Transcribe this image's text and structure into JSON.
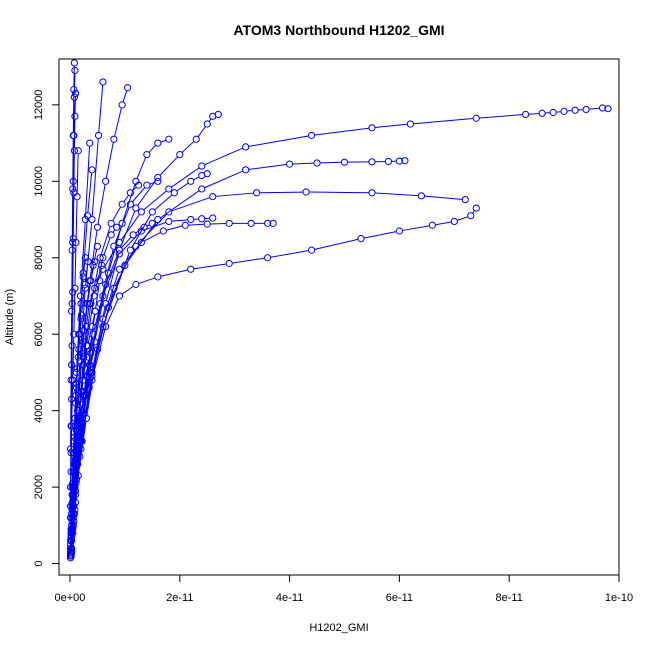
{
  "chart_data": {
    "type": "line",
    "title": "ATOM3 Northbound H1202_GMI",
    "xlabel": "H1202_GMI",
    "ylabel": "Altitude (m)",
    "xlim": [
      -2e-12,
      1e-10
    ],
    "ylim": [
      -300,
      13200
    ],
    "x_ticks": [
      {
        "value": 0,
        "label": "0e+00"
      },
      {
        "value": 2e-11,
        "label": "2e-11"
      },
      {
        "value": 4e-11,
        "label": "4e-11"
      },
      {
        "value": 6e-11,
        "label": "6e-11"
      },
      {
        "value": 8e-11,
        "label": "8e-11"
      },
      {
        "value": 1e-10,
        "label": "1e-10"
      }
    ],
    "y_ticks": [
      {
        "value": 0,
        "label": "0"
      },
      {
        "value": 2000,
        "label": "2000"
      },
      {
        "value": 4000,
        "label": "4000"
      },
      {
        "value": 6000,
        "label": "6000"
      },
      {
        "value": 8000,
        "label": "8000"
      },
      {
        "value": 10000,
        "label": "10000"
      },
      {
        "value": 12000,
        "label": "12000"
      }
    ],
    "marker": "open-circle",
    "color": "#0000ff",
    "grid": false,
    "series": [
      {
        "x": [
          2e-13,
          3e-13,
          5e-13,
          8e-13,
          1.2e-12,
          1.5e-12,
          2e-12,
          2.5e-12,
          3e-12,
          3.5e-12,
          4.5e-12,
          6e-12,
          9e-12,
          1.3e-11,
          1.8e-11,
          2.4e-11,
          3.2e-11,
          4.4e-11,
          5.5e-11,
          6.2e-11,
          7.4e-11,
          8.3e-11,
          8.6e-11,
          8.8e-11,
          9e-11,
          9.2e-11,
          9.4e-11,
          9.7e-11,
          9.8e-11
        ],
        "y": [
          200,
          600,
          1200,
          2000,
          2800,
          3600,
          4500,
          5400,
          6200,
          6800,
          7200,
          7700,
          8400,
          9200,
          9800,
          10400,
          10900,
          11200,
          11400,
          11500,
          11650,
          11750,
          11780,
          11800,
          11830,
          11860,
          11880,
          11920,
          11900
        ]
      },
      {
        "x": [
          2e-13,
          5e-13,
          1e-12,
          2e-12,
          4e-12,
          6.5e-12,
          9e-12,
          1.2e-11,
          1.6e-11,
          2.2e-11,
          2.9e-11,
          3.6e-11,
          4.4e-11,
          5.3e-11,
          6e-11,
          6.6e-11,
          7e-11,
          7.3e-11,
          7.4e-11
        ],
        "y": [
          250,
          900,
          1900,
          3200,
          4800,
          6200,
          7000,
          7300,
          7500,
          7700,
          7850,
          8000,
          8200,
          8500,
          8700,
          8850,
          8950,
          9100,
          9300
        ]
      },
      {
        "x": [
          3e-13,
          7e-13,
          1.5e-12,
          3e-12,
          5e-12,
          8e-12,
          1.2e-11,
          1.8e-11,
          2.6e-11,
          3.4e-11,
          4.3e-11,
          5.5e-11,
          6.4e-11,
          7.2e-11
        ],
        "y": [
          300,
          1100,
          2300,
          3800,
          5600,
          7200,
          8300,
          9200,
          9600,
          9700,
          9720,
          9700,
          9620,
          9520
        ]
      },
      {
        "x": [
          2e-13,
          6e-13,
          1.4e-12,
          3e-12,
          6e-12,
          1e-11,
          1.6e-11,
          2.4e-11,
          3.2e-11,
          4e-11,
          4.5e-11,
          5e-11,
          5.5e-11,
          5.8e-11,
          6e-11,
          6.1e-11
        ],
        "y": [
          300,
          1200,
          2600,
          4400,
          6200,
          7800,
          9000,
          9800,
          10300,
          10450,
          10480,
          10500,
          10510,
          10520,
          10530,
          10540
        ]
      },
      {
        "x": [
          3e-13,
          1e-12,
          2.2e-12,
          4e-12,
          6.5e-12,
          9e-12,
          1.2e-11,
          1.6e-11,
          2e-11,
          2.3e-11,
          2.5e-11,
          2.6e-11,
          2.7e-11
        ],
        "y": [
          400,
          1600,
          3200,
          5000,
          6800,
          8200,
          9300,
          10100,
          10700,
          11100,
          11500,
          11700,
          11750
        ]
      },
      {
        "x": [
          2e-13,
          8e-13,
          1.8e-12,
          3.5e-12,
          6e-12,
          9e-12,
          1.3e-11,
          1.7e-11,
          2.1e-11,
          2.5e-11,
          2.9e-11,
          3.3e-11,
          3.6e-11,
          3.7e-11
        ],
        "y": [
          300,
          1300,
          2800,
          4600,
          6400,
          7700,
          8400,
          8700,
          8850,
          8880,
          8900,
          8900,
          8900,
          8900
        ]
      },
      {
        "x": [
          2e-13,
          6e-13,
          1.2e-12,
          2.5e-12,
          4.5e-12,
          7e-12,
          9.5e-12,
          1.2e-11,
          1.4e-11,
          1.6e-11,
          1.8e-11
        ],
        "y": [
          250,
          1000,
          2200,
          3900,
          5800,
          7600,
          8900,
          10000,
          10700,
          11000,
          11100
        ]
      },
      {
        "x": [
          3e-13,
          9e-13,
          2e-12,
          4e-12,
          7e-12,
          1.1e-11,
          1.5e-11,
          1.9e-11,
          2.2e-11,
          2.4e-11,
          2.5e-11
        ],
        "y": [
          350,
          1400,
          3000,
          4900,
          6700,
          8200,
          9200,
          9700,
          10000,
          10150,
          10200
        ]
      },
      {
        "x": [
          2e-13,
          5e-13,
          1e-12,
          2e-12,
          3.5e-12,
          5.5e-12,
          8e-12,
          1.1e-11,
          1.4e-11,
          1.6e-11
        ],
        "y": [
          200,
          800,
          1800,
          3200,
          5000,
          6800,
          8300,
          9400,
          9900,
          10000
        ]
      },
      {
        "x": [
          2e-13,
          5e-13,
          1.1e-12,
          2.2e-12,
          3.8e-12,
          6e-12,
          9e-12,
          1.3e-11,
          1.8e-11,
          2.2e-11,
          2.4e-11,
          2.6e-11
        ],
        "y": [
          250,
          950,
          2100,
          3700,
          5500,
          7000,
          8100,
          8700,
          8950,
          9000,
          9020,
          9040
        ]
      },
      {
        "x": [
          2e-13,
          4e-13,
          8e-13,
          1.4e-12,
          2.4e-12,
          3.6e-12,
          5e-12,
          6.5e-12,
          8e-12,
          9.5e-12,
          1.05e-11
        ],
        "y": [
          300,
          1100,
          2400,
          4000,
          5800,
          7400,
          8800,
          10000,
          11100,
          12000,
          12450
        ]
      },
      {
        "x": [
          1e-13,
          3e-13,
          6e-13,
          1.1e-12,
          1.8e-12,
          2.8e-12,
          4e-12,
          5.2e-12,
          6e-12
        ],
        "y": [
          200,
          900,
          2000,
          3500,
          5300,
          7200,
          9000,
          11200,
          12600
        ]
      },
      {
        "x": [
          1e-13,
          3e-13,
          7e-13,
          1.4e-12,
          2.4e-12,
          3.8e-12,
          5.5e-12,
          7.5e-12,
          9.5e-12,
          1.1e-11,
          1.25e-11
        ],
        "y": [
          250,
          900,
          2000,
          3500,
          5200,
          6800,
          8000,
          8900,
          9400,
          9700,
          9900
        ]
      },
      {
        "x": [
          2e-13,
          6e-13,
          1.3e-12,
          2.5e-12,
          4.2e-12,
          6.5e-12,
          9e-12,
          1.15e-11,
          1.35e-11,
          1.5e-11
        ],
        "y": [
          300,
          1300,
          2800,
          4400,
          6000,
          7300,
          8200,
          8600,
          8800,
          8900
        ]
      },
      {
        "x": [
          1e-13,
          3e-13,
          6e-13,
          1.1e-12,
          1.9e-12,
          3e-12,
          4.4e-12,
          6e-12,
          7.5e-12,
          8.5e-12
        ],
        "y": [
          200,
          800,
          1700,
          2900,
          4300,
          5700,
          7000,
          8000,
          8600,
          8800
        ]
      },
      {
        "x": [
          1e-13,
          3e-13,
          7e-13,
          1.3e-12,
          2.2e-12,
          3.4e-12,
          4.6e-12,
          5.4e-12,
          5.8e-12
        ],
        "y": [
          200,
          700,
          1500,
          2700,
          4000,
          5400,
          6600,
          7400,
          7800
        ]
      },
      {
        "x": [
          1e-13,
          2e-13,
          4e-13,
          8e-13,
          1.4e-12,
          2.2e-12,
          3.2e-12,
          4.2e-12,
          5e-12
        ],
        "y": [
          150,
          600,
          1400,
          2600,
          4000,
          5500,
          6800,
          7800,
          8300
        ]
      },
      {
        "x": [
          1e-13,
          2e-13,
          4e-13,
          7e-13,
          1.1e-12,
          1.7e-12,
          2.4e-12,
          3.2e-12,
          4e-12
        ],
        "y": [
          200,
          700,
          1600,
          2900,
          4400,
          6000,
          7600,
          9100,
          10300
        ]
      },
      {
        "x": [
          1e-13,
          2e-13,
          4e-13,
          7e-13,
          1.2e-12,
          1.9e-12,
          2.8e-12,
          3.6e-12
        ],
        "y": [
          200,
          800,
          1800,
          3200,
          5000,
          7000,
          9000,
          11000
        ]
      },
      {
        "x": [
          1e-13,
          3e-13,
          6e-13,
          1e-12,
          1.6e-12,
          2.4e-12,
          3.2e-12,
          4e-12,
          4.6e-12
        ],
        "y": [
          300,
          900,
          1700,
          2700,
          3800,
          4800,
          5700,
          6200,
          6600
        ]
      },
      {
        "x": [
          1e-13,
          3e-13,
          6e-13,
          1e-12,
          1.5e-12,
          2e-12,
          2.6e-12,
          3.2e-12,
          3.6e-12
        ],
        "y": [
          400,
          1000,
          1800,
          2600,
          3300,
          3900,
          4400,
          4900,
          5200
        ]
      },
      {
        "x": [
          1e-13,
          2e-13,
          4e-13,
          7e-13,
          1e-12,
          1.4e-12,
          1.8e-12,
          2.2e-12,
          2.5e-12
        ],
        "y": [
          300,
          800,
          1400,
          2000,
          2600,
          3200,
          3700,
          4200,
          4500
        ]
      },
      {
        "x": [
          1e-13,
          3e-13,
          6e-13,
          9e-13,
          1.3e-12,
          1.8e-12,
          2.3e-12,
          2.7e-12,
          3e-12
        ],
        "y": [
          400,
          900,
          1500,
          2000,
          2600,
          3200,
          3800,
          4400,
          4900
        ]
      },
      {
        "x": [
          1e-13,
          2e-13,
          4e-13,
          6e-13,
          9e-13,
          1.2e-12,
          1.5e-12,
          1.8e-12,
          2e-12
        ],
        "y": [
          500,
          1200,
          2000,
          2900,
          3800,
          4600,
          5400,
          6000,
          6400
        ]
      },
      {
        "x": [
          1e-13,
          2e-13,
          3e-13,
          5e-13,
          7e-13,
          9e-13,
          1.1e-12,
          1.3e-12,
          1.5e-12
        ],
        "y": [
          1200,
          2400,
          3600,
          4800,
          6000,
          7200,
          8400,
          9600,
          10800
        ]
      },
      {
        "x": [
          1e-13,
          2e-13,
          3e-13,
          4e-13,
          5e-13,
          6e-13,
          7e-13,
          8e-13,
          9e-13
        ],
        "y": [
          2000,
          3600,
          5200,
          6800,
          8400,
          10000,
          11200,
          12200,
          12900
        ]
      },
      {
        "x": [
          1e-13,
          2e-13,
          3e-13,
          4e-13,
          5e-13,
          6e-13,
          7e-13,
          8e-13
        ],
        "y": [
          3000,
          4800,
          6600,
          8200,
          9800,
          11200,
          12400,
          13100
        ]
      },
      {
        "x": [
          2e-13,
          4e-13,
          6e-13,
          8e-13,
          1e-12,
          1.3e-12,
          1.6e-12,
          2e-12,
          2.4e-12,
          2.8e-12
        ],
        "y": [
          700,
          1500,
          2400,
          3300,
          4200,
          5100,
          6000,
          6800,
          7500,
          8000
        ]
      },
      {
        "x": [
          1e-13,
          3e-13,
          5e-13,
          7e-13,
          9e-13,
          1.2e-12,
          1.6e-12,
          2.1e-12,
          2.7e-12,
          3.3e-12
        ],
        "y": [
          600,
          1300,
          2100,
          2900,
          3800,
          4700,
          5600,
          6500,
          7300,
          7900
        ]
      },
      {
        "x": [
          2e-13,
          4e-13,
          7e-13,
          1e-12,
          1.4e-12,
          1.9e-12,
          2.5e-12,
          3.1e-12,
          3.8e-12,
          4.5e-12
        ],
        "y": [
          900,
          1800,
          2700,
          3600,
          4500,
          5300,
          6100,
          6800,
          7400,
          7900
        ]
      },
      {
        "x": [
          1e-13,
          2e-13,
          3e-13,
          4e-13,
          5e-13,
          6e-13,
          7e-13,
          8e-13,
          9e-13,
          1e-12
        ],
        "y": [
          1500,
          2900,
          4300,
          5700,
          7100,
          8500,
          9700,
          10800,
          11700,
          12300
        ]
      }
    ]
  }
}
